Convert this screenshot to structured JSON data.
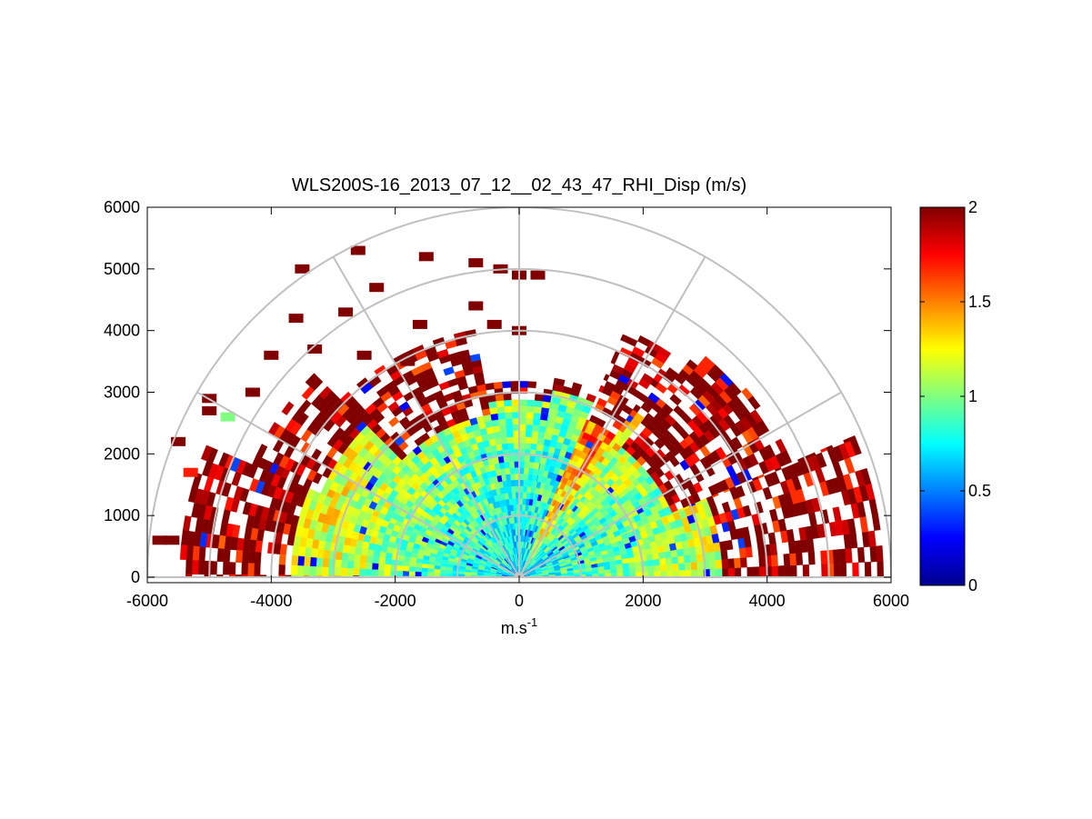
{
  "chart_data": {
    "type": "heatmap",
    "subtype": "polar-rhi-sector",
    "title": "WLS200S-16_2013_07_12__02_43_47_RHI_Disp (m/s)",
    "xlabel": "m.s",
    "xlabel_sup": "-1",
    "ylabel": "",
    "xlim": [
      -6000,
      6000
    ],
    "ylim": [
      0,
      6000
    ],
    "x_ticks": [
      "-6000",
      "-4000",
      "-2000",
      "0",
      "2000",
      "4000",
      "6000"
    ],
    "y_ticks": [
      "0",
      "1000",
      "2000",
      "3000",
      "4000",
      "5000",
      "6000"
    ],
    "polar_grid": {
      "range_rings": [
        1000,
        2000,
        3000,
        4000,
        5000,
        6000
      ],
      "spoke_angles_deg": [
        0,
        30,
        60,
        90,
        120,
        150,
        180
      ],
      "color": "#c0c0c0"
    },
    "colorbar": {
      "colormap": "jet",
      "min": 0,
      "max": 2,
      "tick_labels": [
        "0",
        "0.5",
        "1",
        "1.5",
        "2"
      ]
    },
    "sectors": [
      {
        "elev_deg": [
          0,
          23
        ],
        "inner_value": 0.75,
        "outer_value": 1.55,
        "high_from_range": 3200,
        "max_range_m": 5800
      },
      {
        "elev_deg": [
          23,
          40
        ],
        "inner_value": 0.7,
        "outer_value": 1.3,
        "high_from_range": 2600,
        "max_range_m": 4700
      },
      {
        "elev_deg": [
          40,
          52
        ],
        "inner_value": 0.8,
        "outer_value": 1.4,
        "high_from_range": 2600,
        "max_range_m": 4600
      },
      {
        "elev_deg": [
          52,
          56
        ],
        "inner_value": 0.75,
        "outer_value": 1.6,
        "high_from_range": 3200,
        "max_range_m": 4100
      },
      {
        "elev_deg": [
          56,
          67
        ],
        "inner_value": 1.05,
        "outer_value": 1.85,
        "high_from_range": 2700,
        "max_range_m": 4300
      },
      {
        "elev_deg": [
          67,
          80
        ],
        "inner_value": 0.7,
        "outer_value": 1.0,
        "high_from_range": 3000,
        "max_range_m": 3250
      },
      {
        "elev_deg": [
          80,
          100
        ],
        "inner_value": 0.65,
        "outer_value": 1.1,
        "high_from_range": 2800,
        "max_range_m": 3150
      },
      {
        "elev_deg": [
          100,
          135
        ],
        "inner_value": 0.7,
        "outer_value": 1.3,
        "high_from_range": 2600,
        "max_range_m": 4000
      },
      {
        "elev_deg": [
          135,
          157
        ],
        "inner_value": 0.75,
        "outer_value": 1.4,
        "high_from_range": 3400,
        "max_range_m": 4600
      },
      {
        "elev_deg": [
          157,
          180
        ],
        "inner_value": 0.75,
        "outer_value": 1.5,
        "high_from_range": 3600,
        "max_range_m": 5400
      }
    ],
    "scattered_high_values": [
      {
        "x": -1600,
        "y": 4100,
        "value": 2.0
      },
      {
        "x": -2300,
        "y": 4700,
        "value": 2.0
      },
      {
        "x": -2500,
        "y": 3600,
        "value": 2.0
      },
      {
        "x": -3300,
        "y": 3700,
        "value": 2.0
      },
      {
        "x": -3600,
        "y": 4200,
        "value": 2.0
      },
      {
        "x": -4000,
        "y": 3600,
        "value": 2.0
      },
      {
        "x": -4300,
        "y": 3000,
        "value": 2.0
      },
      {
        "x": -5000,
        "y": 2700,
        "value": 2.0
      },
      {
        "x": -5500,
        "y": 2200,
        "value": 2.0
      },
      {
        "x": -5800,
        "y": 600,
        "value": 2.0
      },
      {
        "x": -5600,
        "y": 600,
        "value": 2.0
      },
      {
        "x": -5300,
        "y": 1700,
        "value": 1.7
      },
      {
        "x": -3500,
        "y": 5000,
        "value": 2.0
      },
      {
        "x": -2600,
        "y": 5300,
        "value": 2.0
      },
      {
        "x": -1500,
        "y": 5200,
        "value": 2.0
      },
      {
        "x": -700,
        "y": 4400,
        "value": 2.0
      },
      {
        "x": -400,
        "y": 4100,
        "value": 2.0
      },
      {
        "x": 0,
        "y": 4000,
        "value": 2.0
      },
      {
        "x": -300,
        "y": 5000,
        "value": 2.0
      },
      {
        "x": 0,
        "y": 4900,
        "value": 2.0
      },
      {
        "x": 300,
        "y": 4900,
        "value": 2.0
      },
      {
        "x": -700,
        "y": 5100,
        "value": 2.0
      },
      {
        "x": -2800,
        "y": 4300,
        "value": 2.0
      },
      {
        "x": -1800,
        "y": 3500,
        "value": 2.0
      },
      {
        "x": -4700,
        "y": 2600,
        "value": 1.0
      },
      {
        "x": -5000,
        "y": 2900,
        "value": 2.0
      }
    ]
  }
}
